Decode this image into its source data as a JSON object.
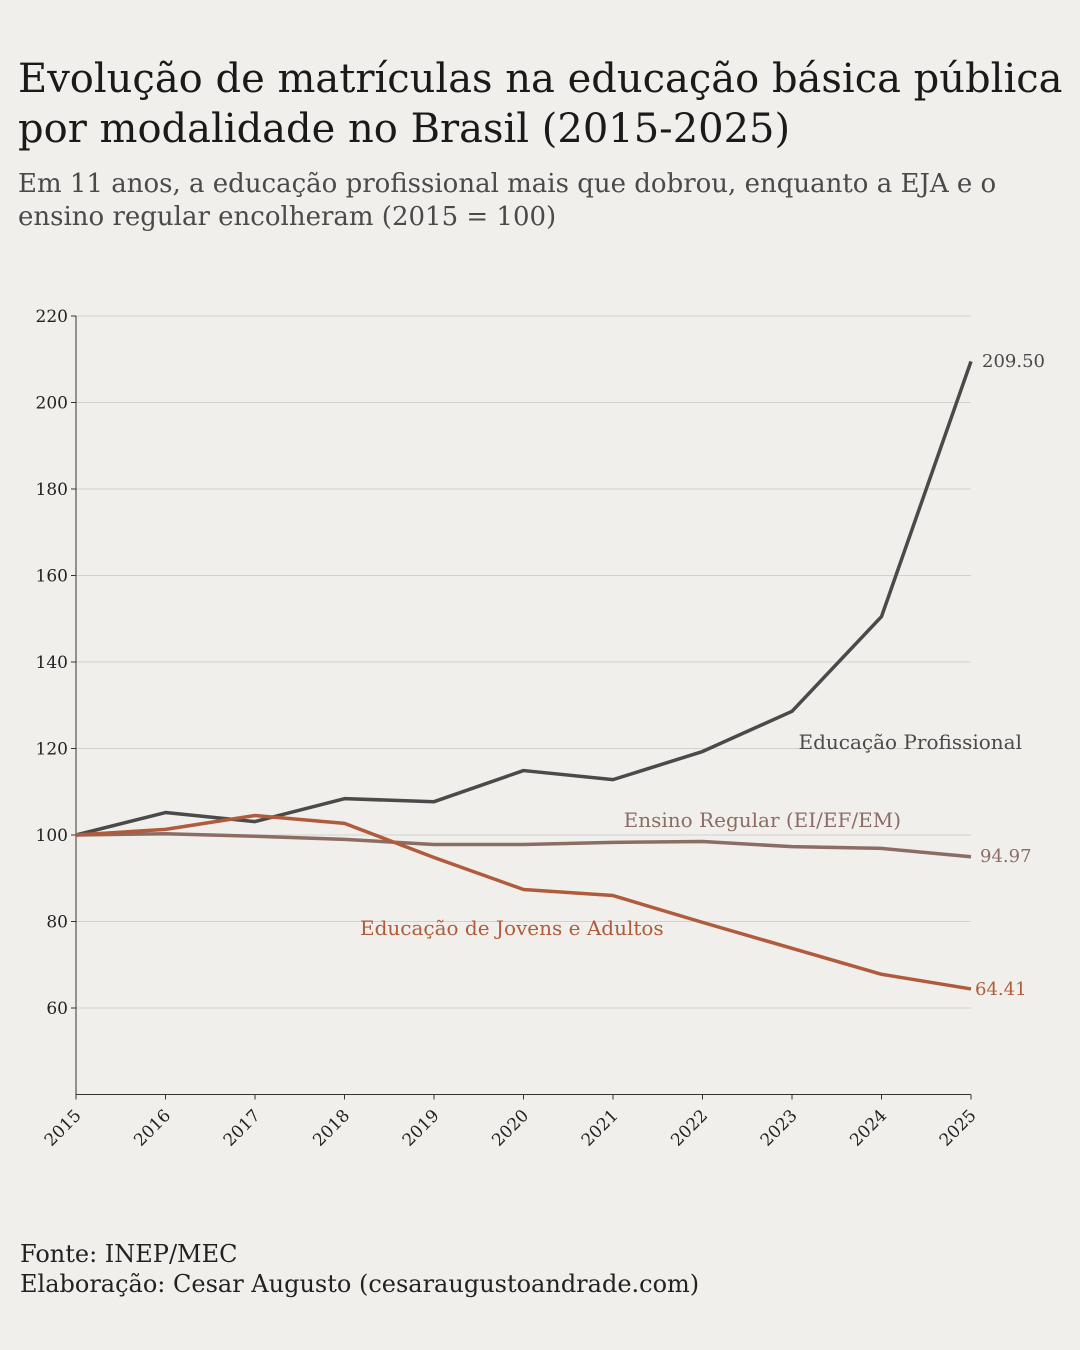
{
  "title": "Evolução de matrículas na educação básica pública por modalidade no Brasil (2015-2025)",
  "subtitle": "Em 11 anos, a educação profissional mais que dobrou, enquanto a EJA e o ensino regular encolheram (2015 = 100)",
  "footer": {
    "source": "Fonte: INEP/MEC",
    "credit": "Elaboração: Cesar Augusto (cesaraugustoandrade.com)"
  },
  "chart_data": {
    "type": "line",
    "x": [
      2015,
      2016,
      2017,
      2018,
      2019,
      2020,
      2021,
      2022,
      2023,
      2024,
      2025
    ],
    "xlim": [
      2015,
      2025
    ],
    "ylim": [
      40,
      220
    ],
    "yticks": [
      60,
      80,
      100,
      120,
      140,
      160,
      180,
      200,
      220
    ],
    "grid": "horizontal",
    "legend": "inline labels",
    "series": [
      {
        "name": "Educação Profissional",
        "color": "#4a4a4a",
        "end_label": "209.50",
        "values": [
          100,
          105.2,
          103.1,
          108.4,
          107.7,
          114.9,
          112.8,
          119.3,
          128.6,
          150.5,
          209.5
        ]
      },
      {
        "name": "Ensino Regular (EI/EF/EM)",
        "color": "#8c6d64",
        "end_label": "94.97",
        "values": [
          100,
          100.3,
          99.7,
          99.0,
          97.8,
          97.8,
          98.3,
          98.5,
          97.3,
          96.9,
          94.97
        ]
      },
      {
        "name": "Educação de Jovens e Adultos",
        "color": "#b05b3b",
        "end_label": "64.41",
        "values": [
          100,
          101.3,
          104.5,
          102.7,
          94.8,
          87.4,
          86.0,
          79.8,
          73.8,
          67.8,
          64.41
        ]
      }
    ]
  }
}
